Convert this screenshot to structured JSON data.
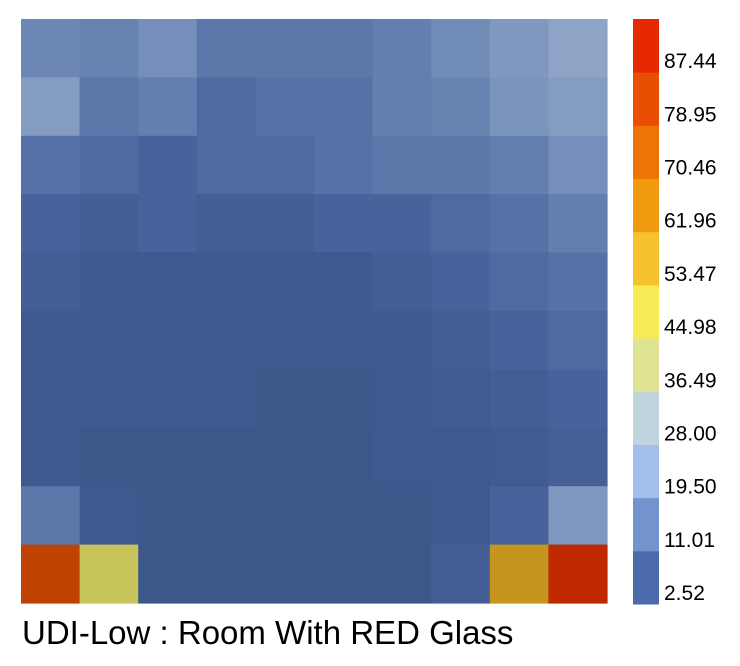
{
  "chart_data": {
    "type": "heatmap",
    "title": "UDI-Low : Room With RED Glass",
    "xlabel": "",
    "ylabel": "",
    "rows": 10,
    "cols": 10,
    "grid": false,
    "legend": "right",
    "values": [
      [
        11,
        10,
        13,
        8,
        8,
        8,
        9,
        12,
        15,
        18
      ],
      [
        16,
        8,
        9,
        6,
        7,
        7,
        9,
        10,
        14,
        16
      ],
      [
        7,
        6,
        5,
        6,
        6,
        7,
        8,
        8,
        9,
        13
      ],
      [
        5,
        4,
        5,
        4,
        4,
        5,
        5,
        6,
        7,
        9
      ],
      [
        4,
        3,
        3,
        3,
        3,
        3,
        4,
        5,
        6,
        7
      ],
      [
        3,
        3,
        3,
        3,
        3,
        3,
        3,
        4,
        5,
        6
      ],
      [
        3,
        3,
        3,
        3,
        2.8,
        2.9,
        3,
        3.5,
        4,
        5
      ],
      [
        3,
        2.7,
        2.6,
        2.6,
        2.6,
        2.6,
        3,
        3,
        3.5,
        4.5
      ],
      [
        8,
        3,
        2.6,
        2.6,
        2.6,
        2.6,
        2.6,
        3,
        5,
        15
      ],
      [
        82,
        40,
        2.6,
        2.6,
        2.6,
        2.6,
        2.6,
        4,
        62,
        92
      ]
    ],
    "colorbar": {
      "ticks": [
        "87.44",
        "78.95",
        "70.46",
        "61.96",
        "53.47",
        "44.98",
        "36.49",
        "28.00",
        "19.50",
        "11.01",
        "2.52"
      ],
      "bins": [
        {
          "min": 2.52,
          "max": 11.01,
          "color": "#4a6aab"
        },
        {
          "min": 11.01,
          "max": 19.5,
          "color": "#7394cc"
        },
        {
          "min": 19.5,
          "max": 28.0,
          "color": "#a3beeb"
        },
        {
          "min": 28.0,
          "max": 36.49,
          "color": "#bfd4dd"
        },
        {
          "min": 36.49,
          "max": 44.98,
          "color": "#dfe392"
        },
        {
          "min": 44.98,
          "max": 53.47,
          "color": "#f7ea54"
        },
        {
          "min": 53.47,
          "max": 61.96,
          "color": "#f7c12e"
        },
        {
          "min": 61.96,
          "max": 70.46,
          "color": "#f19a0e"
        },
        {
          "min": 70.46,
          "max": 78.95,
          "color": "#ec7506"
        },
        {
          "min": 78.95,
          "max": 87.44,
          "color": "#e94e03"
        },
        {
          "min": 87.44,
          "max": 95.93,
          "color": "#e62800"
        }
      ]
    },
    "colors": {
      "low": "#7f97c3",
      "mid_low": "#3c5689",
      "high": "#bd2100",
      "yellow": "#c6c45a",
      "amber": "#c5951e"
    }
  }
}
